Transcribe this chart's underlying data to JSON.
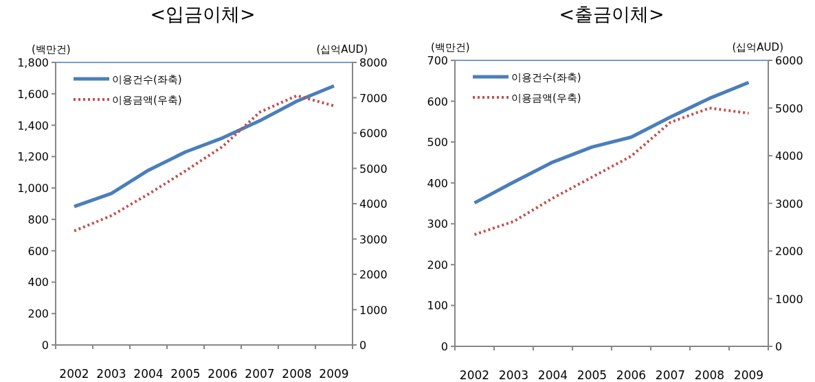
{
  "chart_data": [
    {
      "type": "line",
      "title": "<입금이체>",
      "ylabel": "(백만건)",
      "y2label": "(십억AUD)",
      "categories": [
        "2002",
        "2003",
        "2004",
        "2005",
        "2006",
        "2007",
        "2008",
        "2009"
      ],
      "series": [
        {
          "name": "이용건수(좌축)",
          "color": "#4a7ebb",
          "line_style": "solid",
          "values": [
            882,
            965,
            1113,
            1230,
            1319,
            1428,
            1553,
            1650
          ]
        },
        {
          "name": "이용금액(우축)",
          "color": "#c0504d",
          "line_style": "dotted",
          "axis": "y2",
          "values": [
            3230,
            3660,
            4270,
            4930,
            5620,
            6590,
            7060,
            6770
          ]
        }
      ],
      "ylim": [
        0,
        1800
      ],
      "yticks": [
        0,
        200,
        400,
        600,
        800,
        {
          "value": 1000,
          "label": "1,000"
        },
        {
          "value": 1200,
          "label": "1,200"
        },
        {
          "value": 1400,
          "label": "1,400"
        },
        {
          "value": 1600,
          "label": "1,600"
        },
        {
          "value": 1800,
          "label": "1,800"
        }
      ],
      "y2lim": [
        0,
        8000
      ],
      "y2ticks": [
        0,
        1000,
        2000,
        3000,
        4000,
        5000,
        6000,
        7000,
        8000
      ],
      "legend": "top left",
      "grid": false
    },
    {
      "type": "line",
      "title": "<출금이체>",
      "ylabel": "(백만건)",
      "y2label": "(십억AUD)",
      "categories": [
        "2002",
        "2003",
        "2004",
        "2005",
        "2006",
        "2007",
        "2008",
        "2009"
      ],
      "series": [
        {
          "name": "이용건수(좌축)",
          "color": "#4a7ebb",
          "line_style": "solid",
          "values": [
            351,
            402,
            451,
            488,
            512,
            561,
            607,
            646
          ]
        },
        {
          "name": "이용금액(우축)",
          "color": "#c0504d",
          "line_style": "dotted",
          "axis": "y2",
          "values": [
            2345,
            2620,
            3110,
            3550,
            3990,
            4700,
            5000,
            4890
          ]
        }
      ],
      "ylim": [
        0,
        700
      ],
      "yticks": [
        0,
        100,
        200,
        300,
        400,
        500,
        600,
        700
      ],
      "y2lim": [
        0,
        6000
      ],
      "y2ticks": [
        0,
        1000,
        2000,
        3000,
        4000,
        5000,
        6000
      ],
      "legend": "top left",
      "grid": false
    }
  ]
}
